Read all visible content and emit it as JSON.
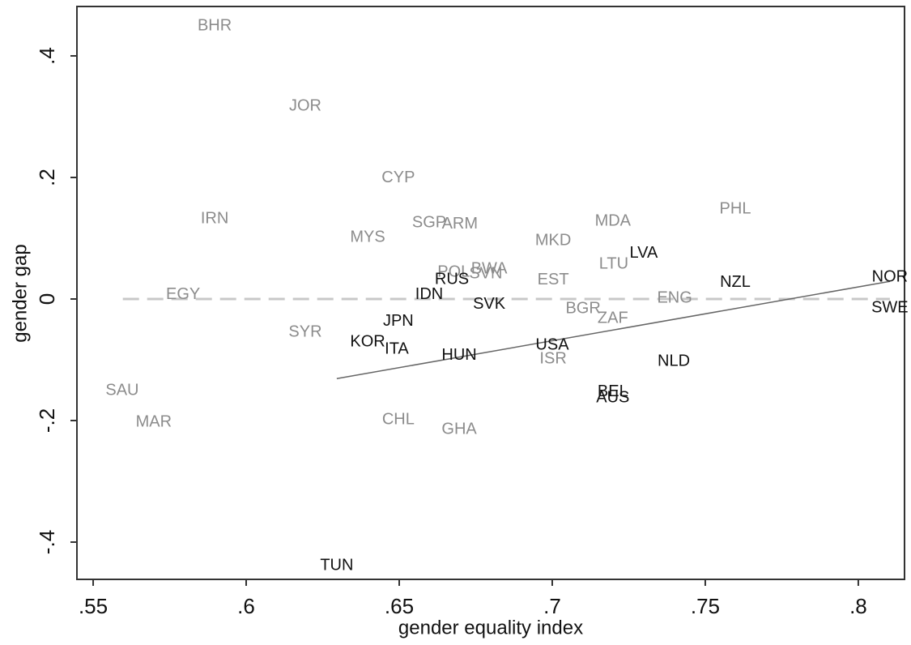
{
  "chart_data": {
    "type": "scatter",
    "x_label": "gender equality index",
    "y_label": "gender gap",
    "xlim": [
      0.5447,
      0.8151
    ],
    "ylim": [
      -0.4613,
      0.4813
    ],
    "xticks": [
      {
        "value": 0.55,
        "label": ".55"
      },
      {
        "value": 0.6,
        "label": ".6"
      },
      {
        "value": 0.65,
        "label": ".65"
      },
      {
        "value": 0.7,
        "label": ".7"
      },
      {
        "value": 0.75,
        "label": ".75"
      },
      {
        "value": 0.8,
        "label": ".8"
      }
    ],
    "yticks": [
      {
        "value": -0.4,
        "label": "-.4"
      },
      {
        "value": -0.2,
        "label": "-.2"
      },
      0,
      {
        "value": 0.2,
        "label": ".2"
      },
      {
        "value": 0.4,
        "label": ".4"
      }
    ],
    "series": [
      {
        "color": "#8c8c8c",
        "labels": [
          "BHR",
          "JOR",
          "CYP",
          "IRN",
          "SGP",
          "ARM",
          "MYS",
          "PHL",
          "MDA",
          "MKD",
          "LTU",
          "BWA",
          "SVN",
          "POL",
          "EST",
          "EGY",
          "ENG",
          "BGR",
          "ZAF",
          "SYR",
          "ISR",
          "SAU",
          "MAR",
          "CHL",
          "GHA"
        ],
        "x": [
          0.5897,
          0.6193,
          0.6497,
          0.5897,
          0.6598,
          0.6698,
          0.6397,
          0.7598,
          0.7198,
          0.7003,
          0.7201,
          0.6794,
          0.6783,
          0.6678,
          0.7003,
          0.5794,
          0.74,
          0.7101,
          0.7198,
          0.6193,
          0.7003,
          0.5595,
          0.5698,
          0.6497,
          0.6696
        ],
        "y": [
          0.449,
          0.317,
          0.199,
          0.132,
          0.125,
          0.123,
          0.101,
          0.148,
          0.128,
          0.096,
          0.057,
          0.049,
          0.041,
          0.044,
          0.031,
          0.007,
          0.001,
          -0.016,
          -0.032,
          -0.055,
          -0.099,
          -0.151,
          -0.203,
          -0.199,
          -0.215
        ]
      },
      {
        "color": "#111111",
        "labels": [
          "LVA",
          "NZL",
          "NOR",
          "RUS",
          "IDN",
          "SVK",
          "SWE",
          "JPN",
          "KOR",
          "ITA",
          "USA",
          "HUN",
          "NLD",
          "BEL",
          "AUS",
          "TUN"
        ],
        "x": [
          0.7299,
          0.7598,
          0.8103,
          0.6672,
          0.6598,
          0.6794,
          0.8103,
          0.6497,
          0.6397,
          0.6492,
          0.7,
          0.6696,
          0.7397,
          0.7198,
          0.7198,
          0.6296
        ],
        "y": [
          0.075,
          0.027,
          0.036,
          0.032,
          0.007,
          -0.009,
          -0.015,
          -0.037,
          -0.071,
          -0.083,
          -0.076,
          -0.093,
          -0.103,
          -0.153,
          -0.163,
          -0.439
        ]
      }
    ],
    "fit_line": {
      "color": "#666666",
      "x": [
        0.6296,
        0.8103
      ],
      "y": [
        -0.131,
        0.029
      ]
    },
    "reference_line": {
      "color": "#c8c8c8",
      "x": [
        0.5597,
        0.8103
      ],
      "y": [
        0,
        0
      ]
    }
  }
}
